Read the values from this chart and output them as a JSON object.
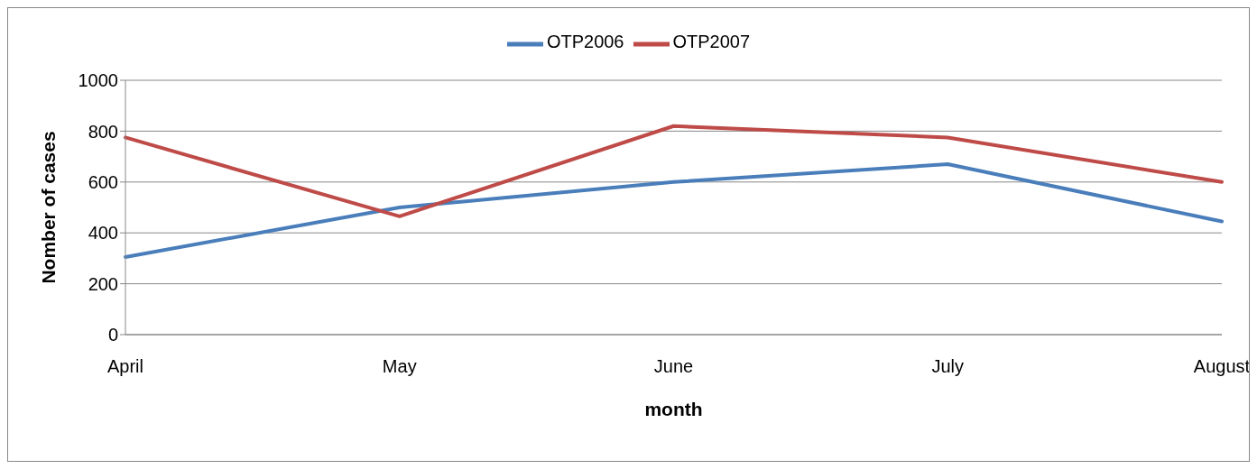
{
  "chart_data": {
    "type": "line",
    "xlabel": "month",
    "ylabel": "Nomber of cases",
    "categories": [
      "April",
      "May",
      "June",
      "July",
      "August"
    ],
    "series": [
      {
        "name": "OTP2006",
        "color": "#4a7ebb",
        "values": [
          305,
          500,
          600,
          670,
          445
        ]
      },
      {
        "name": "OTP2007",
        "color": "#be4b48",
        "values": [
          775,
          465,
          820,
          775,
          600
        ]
      }
    ],
    "ylim": [
      0,
      1000
    ],
    "yticks": [
      0,
      200,
      400,
      600,
      800,
      1000
    ],
    "grid": "y",
    "legend": "top",
    "marker": "none",
    "line_style": "solid"
  }
}
